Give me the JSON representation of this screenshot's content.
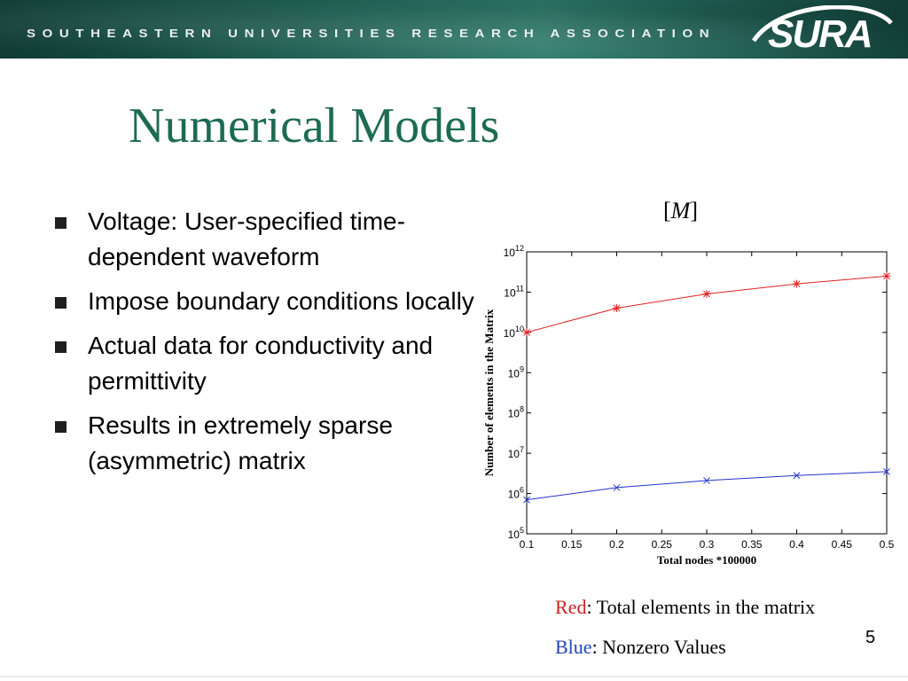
{
  "header": {
    "organization": "SOUTHEASTERN UNIVERSITIES RESEARCH ASSOCIATION",
    "logo_text": "SURA"
  },
  "slide": {
    "title": "Numerical Models",
    "bullets": [
      "Voltage: User-specified time-dependent waveform",
      "Impose boundary conditions locally",
      "Actual data for conductivity and permittivity",
      "Results in extremely sparse (asymmetric) matrix"
    ],
    "matrix_label": "M",
    "legend": {
      "red_word": "Red",
      "red_text": ": Total elements in the matrix",
      "blue_word": "Blue",
      "blue_text": ": Nonzero Values"
    },
    "page_number": "5"
  },
  "colors": {
    "title": "#1d6b52",
    "red_series": "#dd2222",
    "blue_series": "#2233cc"
  },
  "chart_data": {
    "type": "line",
    "xlabel": "Total nodes *100000",
    "ylabel": "Number of elements in the Matrix",
    "yscale": "log",
    "xlim": [
      0.1,
      0.5
    ],
    "ylim": [
      100000,
      1000000000000
    ],
    "x_ticks": [
      "0.1",
      "0.15",
      "0.2",
      "0.25",
      "0.3",
      "0.35",
      "0.4",
      "0.45",
      "0.5"
    ],
    "y_tick_exponents": [
      5,
      6,
      7,
      8,
      9,
      10,
      11,
      12
    ],
    "grid": false,
    "series": [
      {
        "color": "red",
        "marker": "*",
        "x": [
          0.1,
          0.2,
          0.3,
          0.4,
          0.5
        ],
        "y": [
          10000000000,
          40000000000,
          90000000000,
          160000000000,
          250000000000
        ]
      },
      {
        "color": "blue",
        "marker": "x",
        "x": [
          0.1,
          0.2,
          0.3,
          0.4,
          0.5
        ],
        "y": [
          700000,
          1400000,
          2100000,
          2800000,
          3500000
        ]
      }
    ]
  }
}
